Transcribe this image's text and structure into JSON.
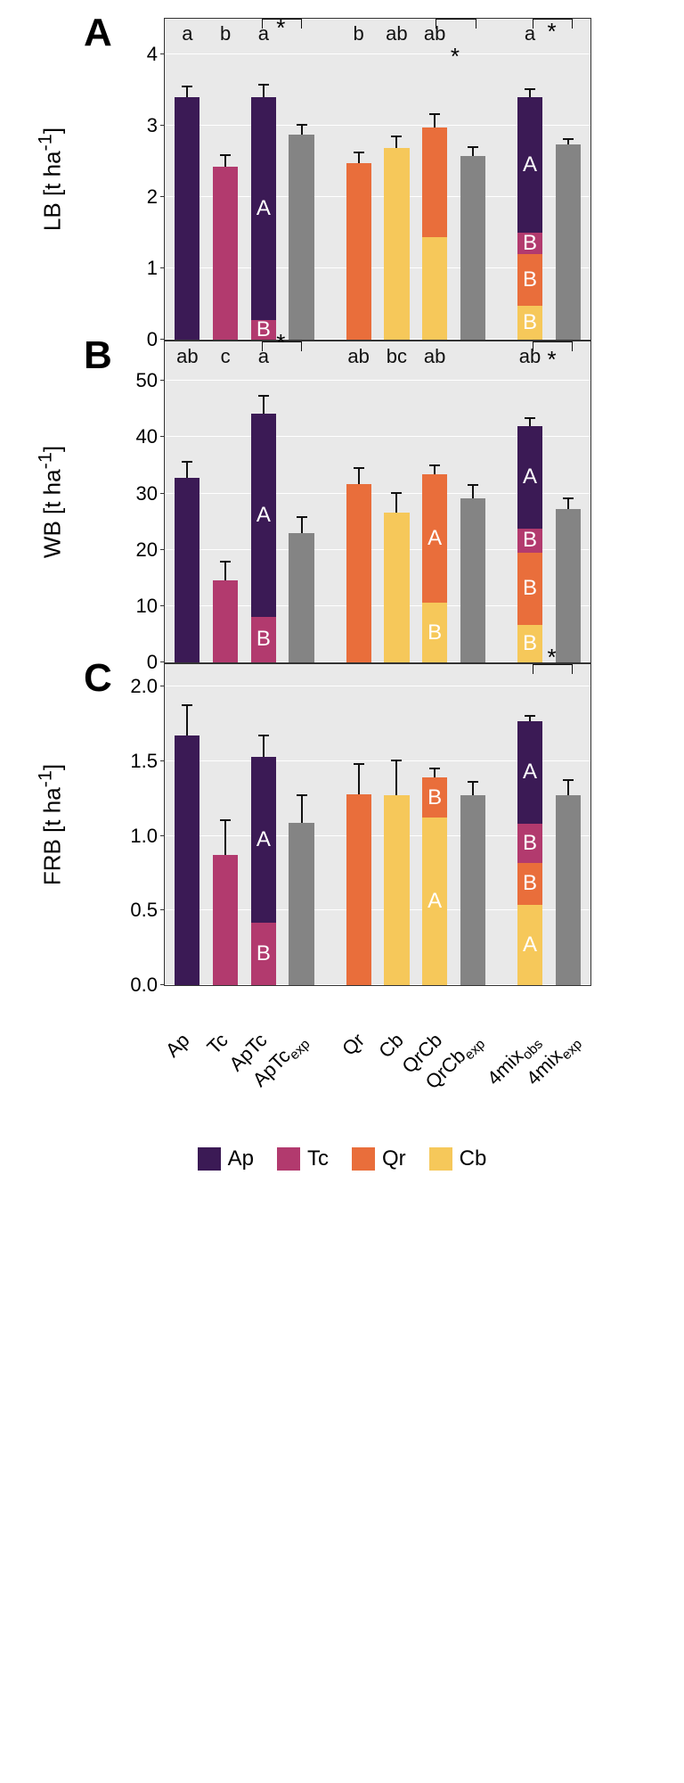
{
  "colors": {
    "Ap": "#3b1a55",
    "Tc": "#b23a6e",
    "Qr": "#e96e3b",
    "Cb": "#f6c85a",
    "exp": "#848484",
    "grid_bg": "#e9e9e9",
    "gridline": "#ffffff",
    "border": "#333333"
  },
  "categories": [
    "Ap",
    "Tc",
    "ApTc",
    "ApTc_exp",
    "Qr",
    "Cb",
    "QrCb",
    "QrCb_exp",
    "4mix_obs",
    "4mix_exp"
  ],
  "x_labels_html": [
    "Ap",
    "Tc",
    "ApTc",
    "ApTc<sub>exp</sub>",
    "Qr",
    "Cb",
    "QrCb",
    "QrCb<sub>exp</sub>",
    "4mix<sub>obs</sub>",
    "4mix<sub>exp</sub>"
  ],
  "legend": [
    {
      "key": "Ap",
      "label": "Ap"
    },
    {
      "key": "Tc",
      "label": "Tc"
    },
    {
      "key": "Qr",
      "label": "Qr"
    },
    {
      "key": "Cb",
      "label": "Cb"
    }
  ],
  "panels": [
    {
      "id": "A",
      "ylab_html": "LB [t ha<sup>-1</sup>]",
      "ymax": 4.5,
      "yticks": [
        0,
        1,
        2,
        3,
        4
      ],
      "top_letters": [
        "a",
        "b",
        "a",
        "",
        "b",
        "ab",
        "ab",
        "",
        "a",
        ""
      ],
      "sig_pairs": [
        {
          "from": 2,
          "to": 3,
          "y": 3.75,
          "label": "*"
        },
        {
          "from": 6,
          "to": 7,
          "y": 3.35,
          "label": "*"
        },
        {
          "from": 8,
          "to": 9,
          "y": 3.7,
          "label": "*"
        }
      ],
      "bars": [
        {
          "segments": [
            {
              "key": "Ap",
              "value": 3.4
            }
          ],
          "err": 0.16
        },
        {
          "segments": [
            {
              "key": "Tc",
              "value": 2.43
            }
          ],
          "err": 0.17
        },
        {
          "segments": [
            {
              "key": "Tc",
              "value": 0.28,
              "label": "B"
            },
            {
              "key": "Ap",
              "value": 3.12,
              "label": "A"
            }
          ],
          "err": 0.19
        },
        {
          "segments": [
            {
              "key": "exp",
              "value": 2.87
            }
          ],
          "err": 0.15
        },
        {
          "segments": [
            {
              "key": "Qr",
              "value": 2.48
            }
          ],
          "err": 0.16
        },
        {
          "segments": [
            {
              "key": "Cb",
              "value": 2.69
            }
          ],
          "err": 0.17
        },
        {
          "segments": [
            {
              "key": "Cb",
              "value": 1.44,
              "label": ""
            },
            {
              "key": "Qr",
              "value": 1.53,
              "label": ""
            }
          ],
          "err": 0.2
        },
        {
          "segments": [
            {
              "key": "exp",
              "value": 2.57
            }
          ],
          "err": 0.14
        },
        {
          "segments": [
            {
              "key": "Cb",
              "value": 0.47,
              "label": "B"
            },
            {
              "key": "Qr",
              "value": 0.73,
              "label": "B"
            },
            {
              "key": "Tc",
              "value": 0.3,
              "label": "B"
            },
            {
              "key": "Ap",
              "value": 1.9,
              "label": "A"
            }
          ],
          "err": 0.12
        },
        {
          "segments": [
            {
              "key": "exp",
              "value": 2.74
            }
          ],
          "err": 0.08
        }
      ]
    },
    {
      "id": "B",
      "ylab_html": "WB [t ha<sup>-1</sup>]",
      "ymax": 57,
      "yticks": [
        0,
        10,
        20,
        30,
        40,
        50
      ],
      "top_letters": [
        "ab",
        "c",
        "a",
        "",
        "ab",
        "bc",
        "ab",
        "",
        "ab",
        ""
      ],
      "sig_pairs": [
        {
          "from": 2,
          "to": 3,
          "y": 49,
          "label": "*"
        },
        {
          "from": 8,
          "to": 9,
          "y": 46,
          "label": "*"
        }
      ],
      "bars": [
        {
          "segments": [
            {
              "key": "Ap",
              "value": 32.8
            }
          ],
          "err": 3.0
        },
        {
          "segments": [
            {
              "key": "Tc",
              "value": 14.6
            }
          ],
          "err": 3.5
        },
        {
          "segments": [
            {
              "key": "Tc",
              "value": 8.1,
              "label": "B"
            },
            {
              "key": "Ap",
              "value": 36.0,
              "label": "A"
            }
          ],
          "err": 3.4
        },
        {
          "segments": [
            {
              "key": "exp",
              "value": 23.0
            }
          ],
          "err": 2.9
        },
        {
          "segments": [
            {
              "key": "Qr",
              "value": 31.6
            }
          ],
          "err": 3.1
        },
        {
          "segments": [
            {
              "key": "Cb",
              "value": 26.6
            }
          ],
          "err": 3.6
        },
        {
          "segments": [
            {
              "key": "Cb",
              "value": 10.6,
              "label": "B"
            },
            {
              "key": "Qr",
              "value": 22.8,
              "label": "A"
            }
          ],
          "err": 1.7
        },
        {
          "segments": [
            {
              "key": "exp",
              "value": 29.1
            }
          ],
          "err": 2.6
        },
        {
          "segments": [
            {
              "key": "Cb",
              "value": 6.7,
              "label": "B"
            },
            {
              "key": "Qr",
              "value": 12.8,
              "label": "B"
            },
            {
              "key": "Tc",
              "value": 4.3,
              "label": "B"
            },
            {
              "key": "Ap",
              "value": 18.2,
              "label": "A"
            }
          ],
          "err": 1.6
        },
        {
          "segments": [
            {
              "key": "exp",
              "value": 27.3
            }
          ],
          "err": 2.0
        }
      ]
    },
    {
      "id": "C",
      "ylab_html": "FRB [t ha<sup>-1</sup>]",
      "ymax": 2.15,
      "yticks": [
        0.0,
        0.5,
        1.0,
        1.5,
        2.0
      ],
      "top_letters": [
        "",
        "",
        "",
        "",
        "",
        "",
        "",
        "",
        "",
        ""
      ],
      "sig_pairs": [
        {
          "from": 8,
          "to": 9,
          "y": 1.9,
          "label": "*"
        }
      ],
      "bars": [
        {
          "segments": [
            {
              "key": "Ap",
              "value": 1.67
            }
          ],
          "err": 0.21
        },
        {
          "segments": [
            {
              "key": "Tc",
              "value": 0.87
            }
          ],
          "err": 0.24
        },
        {
          "segments": [
            {
              "key": "Tc",
              "value": 0.42,
              "label": "B"
            },
            {
              "key": "Ap",
              "value": 1.11,
              "label": "A"
            }
          ],
          "err": 0.15
        },
        {
          "segments": [
            {
              "key": "exp",
              "value": 1.09
            }
          ],
          "err": 0.19
        },
        {
          "segments": [
            {
              "key": "Qr",
              "value": 1.28
            }
          ],
          "err": 0.21
        },
        {
          "segments": [
            {
              "key": "Cb",
              "value": 1.27
            }
          ],
          "err": 0.24
        },
        {
          "segments": [
            {
              "key": "Cb",
              "value": 1.12,
              "label": "A"
            },
            {
              "key": "Qr",
              "value": 0.27,
              "label": "B"
            }
          ],
          "err": 0.07
        },
        {
          "segments": [
            {
              "key": "exp",
              "value": 1.27
            }
          ],
          "err": 0.1
        },
        {
          "segments": [
            {
              "key": "Cb",
              "value": 0.54,
              "label": "A"
            },
            {
              "key": "Qr",
              "value": 0.28,
              "label": "B"
            },
            {
              "key": "Tc",
              "value": 0.26,
              "label": "B"
            },
            {
              "key": "Ap",
              "value": 0.69,
              "label": "A"
            }
          ],
          "err": 0.04
        },
        {
          "segments": [
            {
              "key": "exp",
              "value": 1.27
            }
          ],
          "err": 0.11
        }
      ]
    }
  ]
}
